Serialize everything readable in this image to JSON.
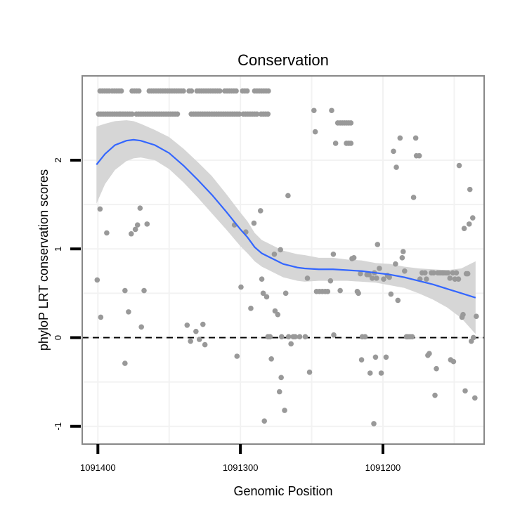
{
  "chart_data": {
    "type": "scatter",
    "title": "Conservation",
    "xlabel": "Genomic Position",
    "ylabel": "phyloP LRT conservation scores",
    "x_reversed": true,
    "xlim": [
      1091411,
      1091129
    ],
    "ylim": [
      -1.2,
      2.95
    ],
    "x_ticks": [
      1091400,
      1091300,
      1091200
    ],
    "x_tick_labels": [
      "1091400",
      "1091300",
      "1091200"
    ],
    "y_ticks": [
      -1,
      0,
      1,
      2
    ],
    "y_tick_labels": [
      "-1",
      "0",
      "1",
      "2"
    ],
    "grid": true,
    "reference_line": {
      "y": 0,
      "style": "dashed",
      "color": "#000000"
    },
    "colors": {
      "points": "#999999",
      "smooth": "#3366ff",
      "ribbon": "#d6d6d6",
      "panel_border": "#888888",
      "grid": "#f2f2f2"
    },
    "points": [
      [
        1091400.5,
        0.65
      ],
      [
        1091398.5,
        1.45
      ],
      [
        1091398.0,
        0.23
      ],
      [
        1091393.8,
        1.18
      ],
      [
        1091381.0,
        0.53
      ],
      [
        1091381.0,
        -0.29
      ],
      [
        1091378.5,
        0.29
      ],
      [
        1091376.6,
        1.17
      ],
      [
        1091373.7,
        1.22
      ],
      [
        1091372.2,
        1.27
      ],
      [
        1091370.4,
        1.46
      ],
      [
        1091369.5,
        0.12
      ],
      [
        1091367.6,
        0.53
      ],
      [
        1091365.5,
        1.28
      ],
      [
        1091337.4,
        0.14
      ],
      [
        1091335.0,
        -0.04
      ],
      [
        1091331.2,
        0.07
      ],
      [
        1091328.8,
        -0.02
      ],
      [
        1091326.3,
        0.15
      ],
      [
        1091324.9,
        -0.08
      ],
      [
        1091304.2,
        1.27
      ],
      [
        1091302.4,
        -0.21
      ],
      [
        1091299.6,
        0.57
      ],
      [
        1091296.2,
        1.19
      ],
      [
        1091292.7,
        0.33
      ],
      [
        1091290.5,
        1.29
      ],
      [
        1091285.9,
        1.43
      ],
      [
        1091285.0,
        0.66
      ],
      [
        1091284.0,
        0.5
      ],
      [
        1091283.2,
        -0.94
      ],
      [
        1091281.6,
        0.46
      ],
      [
        1091280.7,
        0.01
      ],
      [
        1091279.2,
        0.01
      ],
      [
        1091278.3,
        -0.24
      ],
      [
        1091276.2,
        0.94
      ],
      [
        1091275.7,
        0.3
      ],
      [
        1091273.8,
        0.26
      ],
      [
        1091272.6,
        -0.61
      ],
      [
        1091271.9,
        0.99
      ],
      [
        1091271.4,
        -0.45
      ],
      [
        1091271.1,
        0.01
      ],
      [
        1091269.0,
        -0.82
      ],
      [
        1091268.2,
        0.5
      ],
      [
        1091266.6,
        1.6
      ],
      [
        1091266.2,
        0.01
      ],
      [
        1091264.5,
        -0.07
      ],
      [
        1091263.0,
        0.01
      ],
      [
        1091261.6,
        0.01
      ],
      [
        1091258.4,
        0.01
      ],
      [
        1091254.5,
        0.01
      ],
      [
        1091253.0,
        0.67
      ],
      [
        1091251.5,
        -0.39
      ],
      [
        1091248.4,
        2.56
      ],
      [
        1091247.5,
        2.32
      ],
      [
        1091246.6,
        0.52
      ],
      [
        1091244.5,
        0.52
      ],
      [
        1091242.5,
        0.52
      ],
      [
        1091240.5,
        0.52
      ],
      [
        1091238.8,
        0.52
      ],
      [
        1091236.8,
        0.64
      ],
      [
        1091236.0,
        2.56
      ],
      [
        1091234.8,
        0.94
      ],
      [
        1091234.5,
        0.03
      ],
      [
        1091233.2,
        2.19
      ],
      [
        1091230.0,
        0.53
      ],
      [
        1091231.7,
        2.42
      ],
      [
        1091230.0,
        2.42
      ],
      [
        1091228.5,
        2.42
      ],
      [
        1091227.0,
        2.42
      ],
      [
        1091225.5,
        2.42
      ],
      [
        1091224.0,
        2.42
      ],
      [
        1091222.5,
        2.42
      ],
      [
        1091225.6,
        2.19
      ],
      [
        1091224.0,
        2.19
      ],
      [
        1091222.5,
        2.19
      ],
      [
        1091221.7,
        0.89
      ],
      [
        1091220.4,
        0.9
      ],
      [
        1091218.0,
        0.52
      ],
      [
        1091217.2,
        0.5
      ],
      [
        1091215.8,
        0.72
      ],
      [
        1091215.0,
        -0.25
      ],
      [
        1091214.5,
        0.01
      ],
      [
        1091212.5,
        0.01
      ],
      [
        1091211.2,
        0.71
      ],
      [
        1091209.8,
        0.71
      ],
      [
        1091209.0,
        -0.4
      ],
      [
        1091207.5,
        0.67
      ],
      [
        1091206.4,
        -0.97
      ],
      [
        1091206.0,
        0.73
      ],
      [
        1091205.2,
        -0.22
      ],
      [
        1091204.5,
        0.67
      ],
      [
        1091203.8,
        1.05
      ],
      [
        1091202.5,
        0.78
      ],
      [
        1091201.2,
        -0.4
      ],
      [
        1091199.5,
        0.66
      ],
      [
        1091197.8,
        -0.22
      ],
      [
        1091196.8,
        0.7
      ],
      [
        1091195.5,
        0.68
      ],
      [
        1091194.4,
        0.49
      ],
      [
        1091192.6,
        2.1
      ],
      [
        1091191.2,
        0.83
      ],
      [
        1091190.6,
        1.92
      ],
      [
        1091189.5,
        0.42
      ],
      [
        1091188.0,
        2.25
      ],
      [
        1091186.5,
        0.9
      ],
      [
        1091185.8,
        0.97
      ],
      [
        1091184.8,
        0.75
      ],
      [
        1091183.5,
        0.01
      ],
      [
        1091182.5,
        0.01
      ],
      [
        1091181.0,
        0.01
      ],
      [
        1091179.5,
        0.01
      ],
      [
        1091178.5,
        1.58
      ],
      [
        1091177.0,
        2.25
      ],
      [
        1091176.5,
        2.05
      ],
      [
        1091174.5,
        2.05
      ],
      [
        1091174.0,
        0.66
      ],
      [
        1091172.5,
        0.73
      ],
      [
        1091170.5,
        0.73
      ],
      [
        1091169.5,
        0.66
      ],
      [
        1091168.5,
        -0.2
      ],
      [
        1091167.5,
        -0.18
      ],
      [
        1091166.0,
        0.73
      ],
      [
        1091164.5,
        0.73
      ],
      [
        1091163.5,
        -0.65
      ],
      [
        1091162.5,
        -0.35
      ],
      [
        1091161.5,
        0.73
      ],
      [
        1091160.0,
        0.73
      ],
      [
        1091158.5,
        0.73
      ],
      [
        1091157.5,
        0.73
      ],
      [
        1091156.5,
        0.73
      ],
      [
        1091155.5,
        0.73
      ],
      [
        1091154.5,
        0.73
      ],
      [
        1091153.0,
        0.67
      ],
      [
        1091152.5,
        -0.25
      ],
      [
        1091151.0,
        0.73
      ],
      [
        1091150.5,
        -0.27
      ],
      [
        1091149.5,
        0.66
      ],
      [
        1091148.5,
        0.73
      ],
      [
        1091147.0,
        0.66
      ],
      [
        1091146.5,
        1.94
      ],
      [
        1091144.5,
        0.23
      ],
      [
        1091143.8,
        0.26
      ],
      [
        1091143.0,
        1.23
      ],
      [
        1091142.3,
        -0.6
      ],
      [
        1091141.5,
        0.72
      ],
      [
        1091140.5,
        0.72
      ],
      [
        1091139.5,
        1.28
      ],
      [
        1091139.0,
        1.67
      ],
      [
        1091138.0,
        -0.04
      ],
      [
        1091137.0,
        1.35
      ],
      [
        1091136.5,
        0.0
      ],
      [
        1091135.5,
        -0.68
      ],
      [
        1091134.5,
        0.24
      ]
    ],
    "bands": [
      {
        "y": 2.78,
        "ranges": [
          [
            1091398.5,
            1091392.0
          ],
          [
            1091390.0,
            1091383.0
          ],
          [
            1091376.0,
            1091370.0
          ],
          [
            1091364.0,
            1091339.5
          ],
          [
            1091336.0,
            1091333.5
          ],
          [
            1091330.5,
            1091313.0
          ],
          [
            1091311.0,
            1091302.0
          ],
          [
            1091298.5,
            1091294.0
          ],
          [
            1091290.0,
            1091279.5
          ]
        ],
        "step": 1.6
      },
      {
        "y": 2.52,
        "ranges": [
          [
            1091399.5,
            1091385.0
          ],
          [
            1091384.0,
            1091375.0
          ],
          [
            1091373.0,
            1091343.0
          ],
          [
            1091334.5,
            1091321.0
          ],
          [
            1091320.0,
            1091299.5
          ],
          [
            1091298.0,
            1091288.0
          ],
          [
            1091285.5,
            1091280.0
          ]
        ],
        "step": 1.6
      }
    ],
    "smooth": [
      [
        1091401,
        1.95
      ],
      [
        1091395,
        2.07
      ],
      [
        1091388,
        2.17
      ],
      [
        1091380,
        2.22
      ],
      [
        1091375,
        2.23
      ],
      [
        1091370,
        2.22
      ],
      [
        1091360,
        2.17
      ],
      [
        1091350,
        2.08
      ],
      [
        1091340,
        1.94
      ],
      [
        1091330,
        1.78
      ],
      [
        1091320,
        1.61
      ],
      [
        1091310,
        1.42
      ],
      [
        1091300,
        1.22
      ],
      [
        1091295,
        1.13
      ],
      [
        1091290,
        1.02
      ],
      [
        1091285,
        0.95
      ],
      [
        1091280,
        0.91
      ],
      [
        1091275,
        0.87
      ],
      [
        1091270,
        0.83
      ],
      [
        1091265,
        0.81
      ],
      [
        1091260,
        0.79
      ],
      [
        1091255,
        0.78
      ],
      [
        1091245,
        0.77
      ],
      [
        1091235,
        0.77
      ],
      [
        1091225,
        0.76
      ],
      [
        1091215,
        0.75
      ],
      [
        1091205,
        0.73
      ],
      [
        1091195,
        0.71
      ],
      [
        1091185,
        0.68
      ],
      [
        1091175,
        0.64
      ],
      [
        1091165,
        0.6
      ],
      [
        1091155,
        0.55
      ],
      [
        1091145,
        0.5
      ],
      [
        1091135,
        0.45
      ]
    ],
    "ribbon_lower": [
      [
        1091401,
        1.51
      ],
      [
        1091395,
        1.73
      ],
      [
        1091388,
        1.89
      ],
      [
        1091380,
        1.99
      ],
      [
        1091375,
        2.02
      ],
      [
        1091370,
        2.03
      ],
      [
        1091360,
        2.0
      ],
      [
        1091350,
        1.9
      ],
      [
        1091340,
        1.75
      ],
      [
        1091330,
        1.58
      ],
      [
        1091320,
        1.4
      ],
      [
        1091310,
        1.22
      ],
      [
        1091300,
        1.03
      ],
      [
        1091295,
        0.95
      ],
      [
        1091290,
        0.86
      ],
      [
        1091285,
        0.8
      ],
      [
        1091280,
        0.76
      ],
      [
        1091275,
        0.72
      ],
      [
        1091270,
        0.68
      ],
      [
        1091265,
        0.66
      ],
      [
        1091260,
        0.64
      ],
      [
        1091255,
        0.63
      ],
      [
        1091245,
        0.64
      ],
      [
        1091235,
        0.64
      ],
      [
        1091225,
        0.64
      ],
      [
        1091215,
        0.63
      ],
      [
        1091205,
        0.62
      ],
      [
        1091195,
        0.59
      ],
      [
        1091185,
        0.56
      ],
      [
        1091175,
        0.5
      ],
      [
        1091165,
        0.43
      ],
      [
        1091155,
        0.34
      ],
      [
        1091145,
        0.22
      ],
      [
        1091135,
        0.04
      ]
    ],
    "ribbon_upper": [
      [
        1091401,
        2.38
      ],
      [
        1091395,
        2.41
      ],
      [
        1091388,
        2.44
      ],
      [
        1091380,
        2.45
      ],
      [
        1091375,
        2.44
      ],
      [
        1091370,
        2.41
      ],
      [
        1091360,
        2.34
      ],
      [
        1091350,
        2.26
      ],
      [
        1091340,
        2.13
      ],
      [
        1091330,
        1.98
      ],
      [
        1091320,
        1.82
      ],
      [
        1091310,
        1.62
      ],
      [
        1091300,
        1.41
      ],
      [
        1091295,
        1.31
      ],
      [
        1091290,
        1.18
      ],
      [
        1091285,
        1.1
      ],
      [
        1091280,
        1.06
      ],
      [
        1091275,
        1.02
      ],
      [
        1091270,
        0.98
      ],
      [
        1091265,
        0.96
      ],
      [
        1091260,
        0.94
      ],
      [
        1091255,
        0.93
      ],
      [
        1091245,
        0.9
      ],
      [
        1091235,
        0.9
      ],
      [
        1091225,
        0.88
      ],
      [
        1091215,
        0.87
      ],
      [
        1091205,
        0.84
      ],
      [
        1091195,
        0.83
      ],
      [
        1091185,
        0.8
      ],
      [
        1091175,
        0.78
      ],
      [
        1091165,
        0.77
      ],
      [
        1091155,
        0.76
      ],
      [
        1091145,
        0.78
      ],
      [
        1091135,
        0.86
      ]
    ]
  }
}
